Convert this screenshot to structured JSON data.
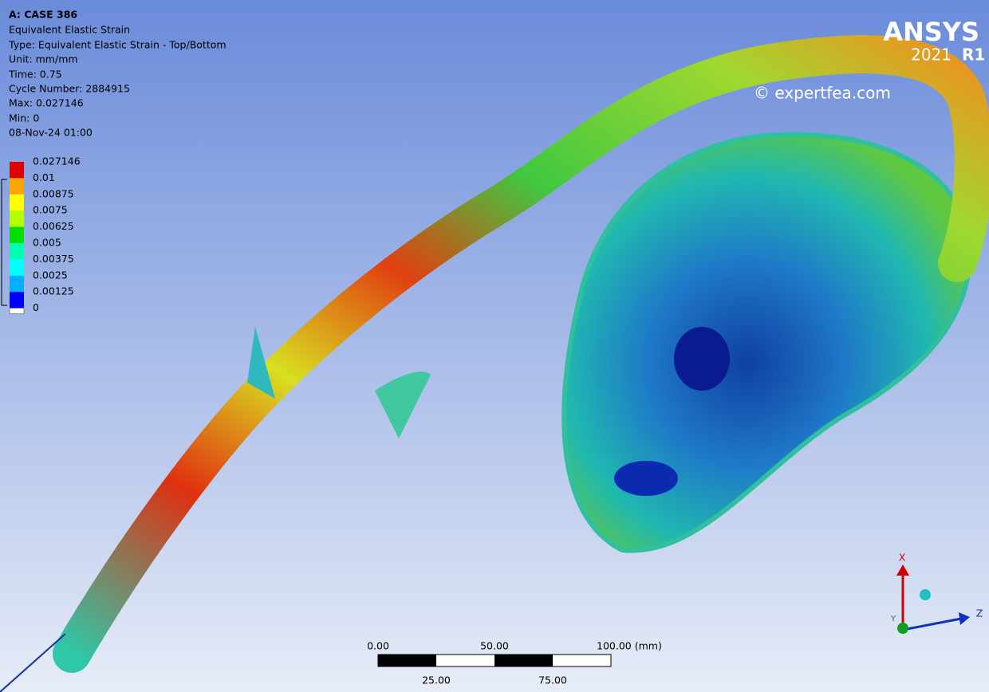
{
  "header": {
    "lines": [
      "A: CASE 386",
      "Equivalent Elastic Strain",
      "Type: Equivalent Elastic Strain - Top/Bottom",
      "Unit: mm/mm",
      "Time: 0.75",
      "Cycle Number: 2884915",
      "Max: 0.027146",
      "Min: 0",
      "08-Nov-24 01:00"
    ]
  },
  "legend": {
    "labels": [
      "0.027146",
      "0.01",
      "0.00875",
      "0.0075",
      "0.00625",
      "0.005",
      "0.00375",
      "0.0025",
      "0.00125",
      "0"
    ]
  },
  "logo": {
    "brand": "ANSYS",
    "version": "2021",
    "release": "R1"
  },
  "watermark": "© expertfea.com",
  "scale_bar": {
    "top_labels": [
      "0.00",
      "50.00",
      "100.00 (mm)"
    ],
    "bottom_labels": [
      "25.00",
      "75.00"
    ]
  },
  "triad": {
    "x": "X",
    "y": "Y",
    "z": "Z"
  }
}
